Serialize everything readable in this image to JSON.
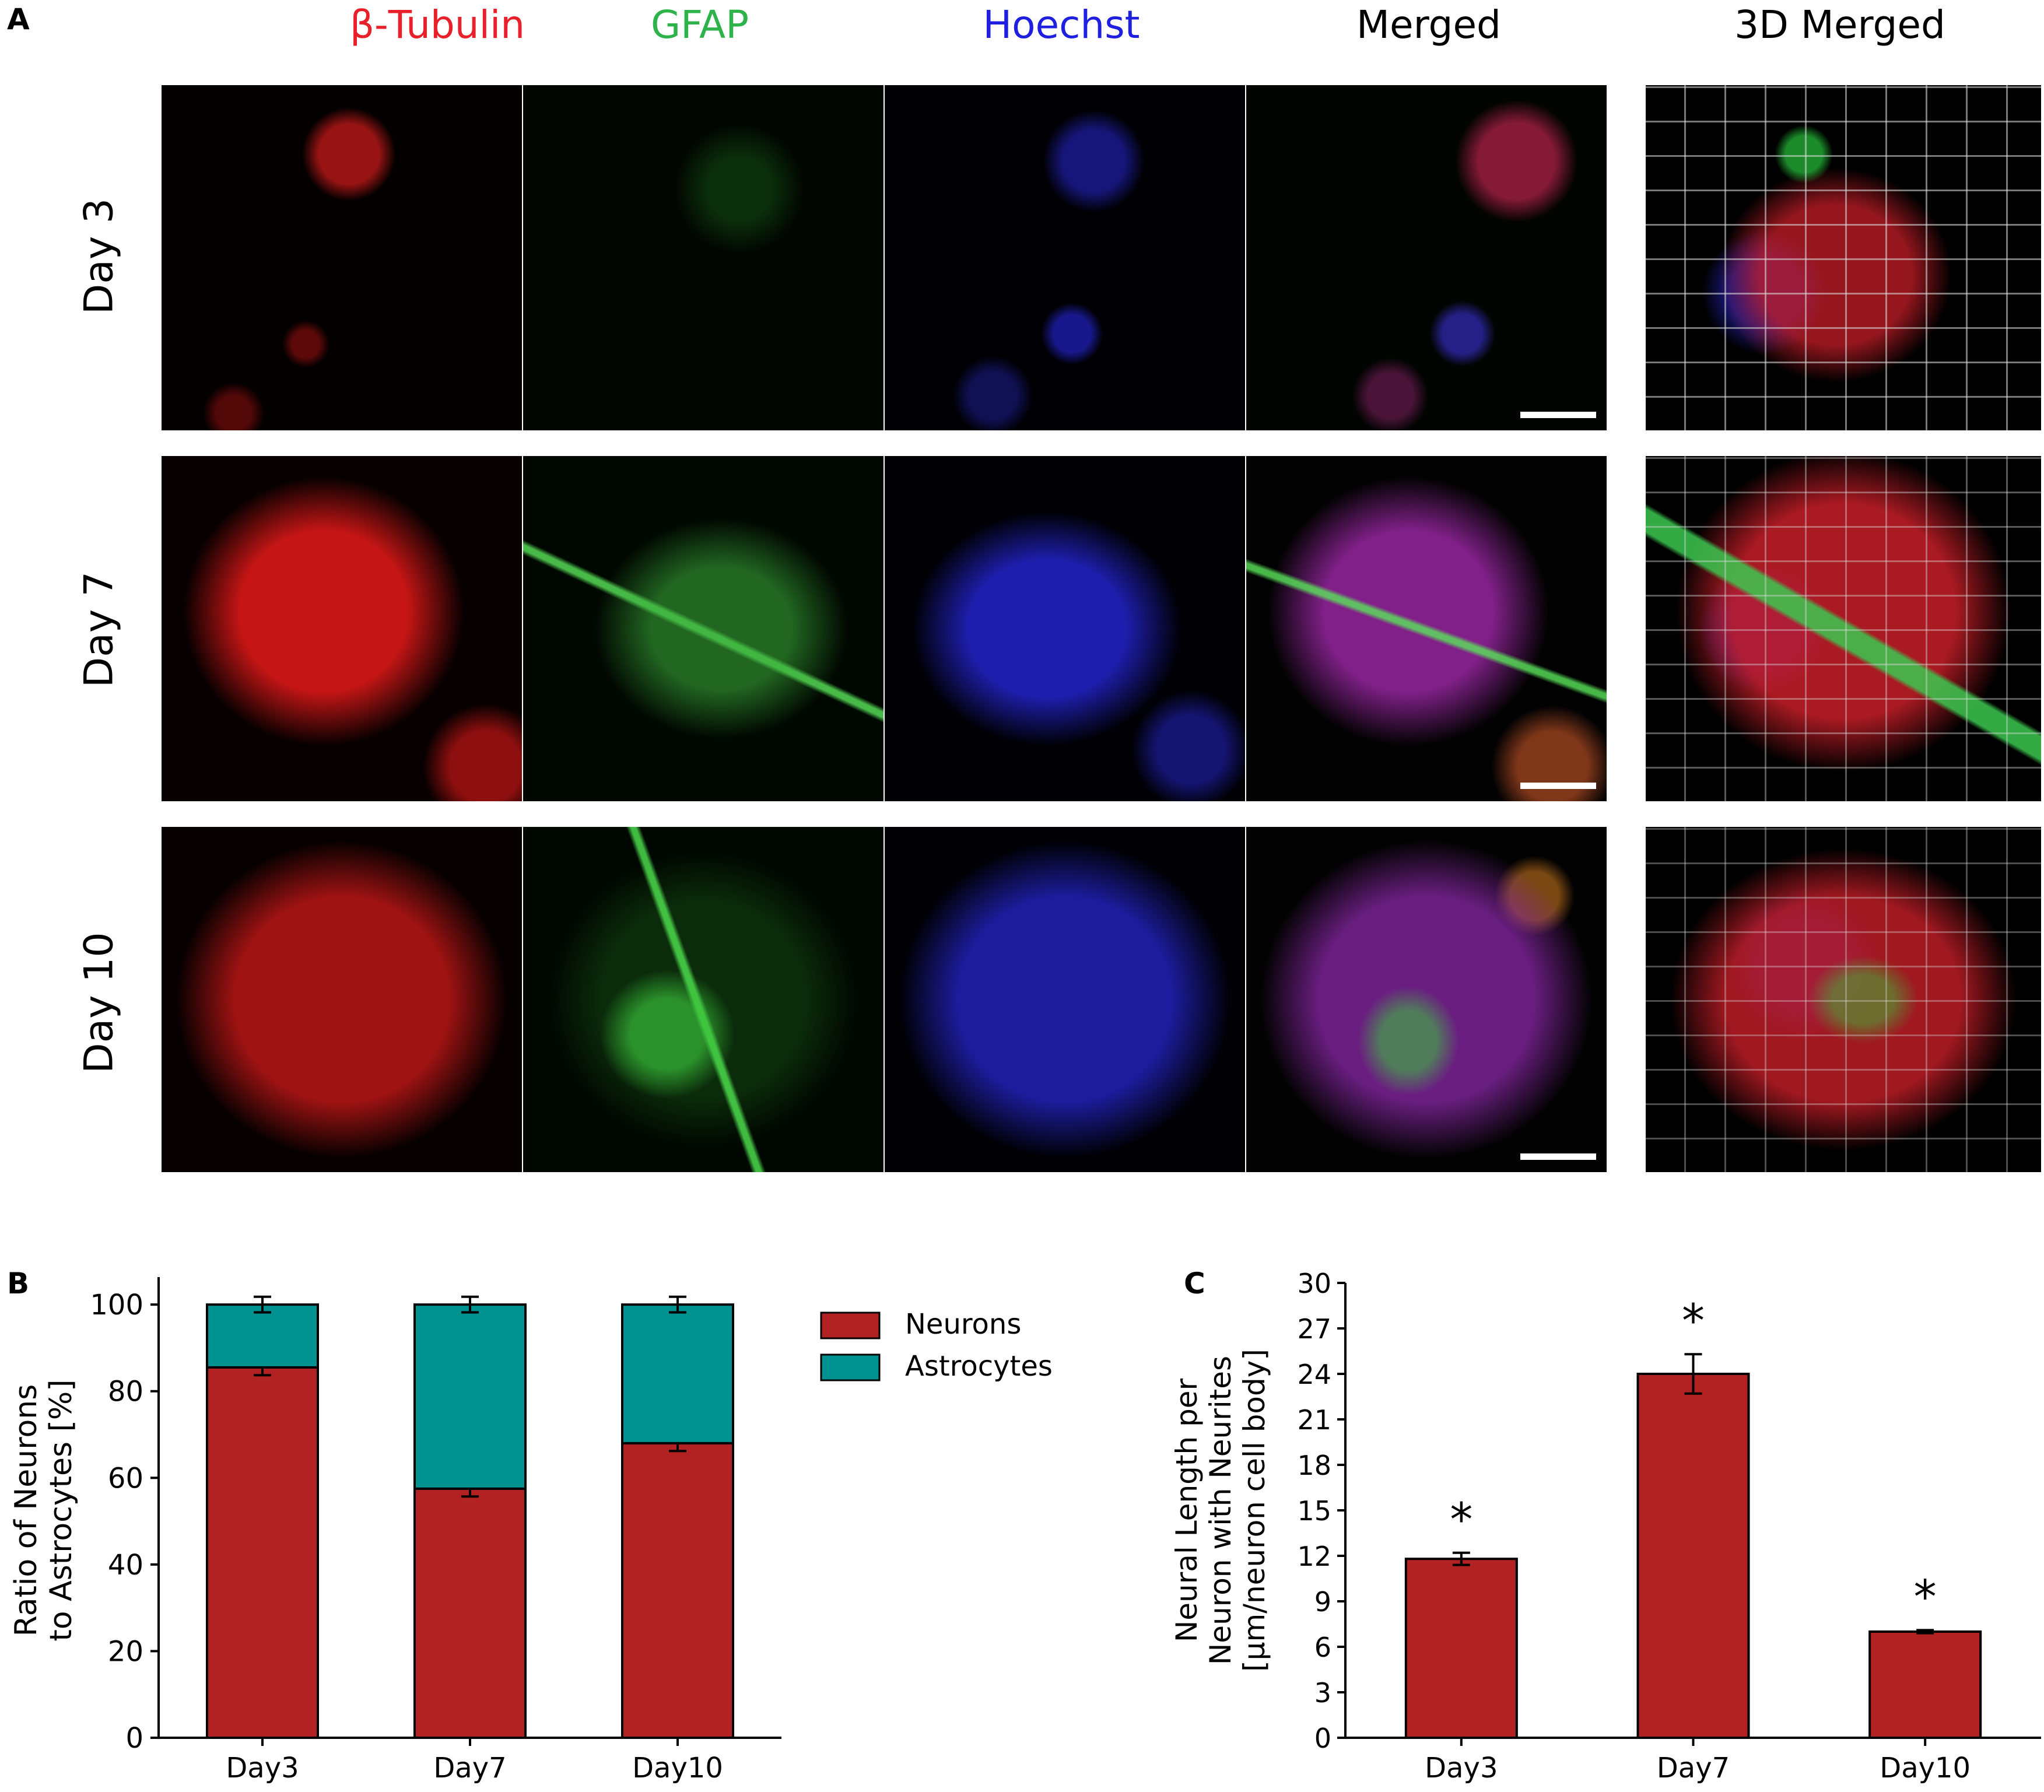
{
  "panel_a": {
    "label": "A",
    "columns": [
      {
        "label": "β-Tubulin",
        "color": "#e8202a"
      },
      {
        "label": "GFAP",
        "color": "#2db34a"
      },
      {
        "label": "Hoechst",
        "color": "#1f1fe0"
      },
      {
        "label": "Merged",
        "color": "#000000"
      },
      {
        "label": "3D Merged",
        "color": "#000000"
      }
    ],
    "rows": [
      {
        "label": "Day 3"
      },
      {
        "label": "Day 7"
      },
      {
        "label": "Day 10"
      }
    ]
  },
  "panel_b": {
    "label": "B"
  },
  "panel_c": {
    "label": "C"
  },
  "chart_data": [
    {
      "type": "bar",
      "stacked": true,
      "categories": [
        "Day3",
        "Day7",
        "Day10"
      ],
      "series": [
        {
          "name": "Neurons",
          "color": "#b22222",
          "values": [
            85.5,
            57.5,
            68.0
          ],
          "errors": [
            1.8,
            1.8,
            1.8
          ]
        },
        {
          "name": "Astrocytes",
          "color": "#009191",
          "values": [
            14.5,
            42.5,
            32.0
          ],
          "errors": [
            1.8,
            1.8,
            1.8
          ]
        }
      ],
      "ylabel_lines": [
        "Ratio of Neurons",
        "to Astrocytes [%]"
      ],
      "ylim": [
        0,
        105
      ],
      "yticks": [
        0,
        20,
        40,
        60,
        80,
        100
      ],
      "legend": "top-right"
    },
    {
      "type": "bar",
      "categories": [
        "Day3",
        "Day7",
        "Day10"
      ],
      "series": [
        {
          "color": "#b22222",
          "values": [
            11.8,
            24.0,
            7.0
          ],
          "errors": [
            0.4,
            1.3,
            0.1
          ]
        }
      ],
      "annotations": [
        "*",
        "*",
        "*"
      ],
      "ylabel_lines": [
        "Neural Length per",
        "Neuron with Neurites",
        "[μm/neuron cell body]"
      ],
      "ylim": [
        0,
        30
      ],
      "yticks": [
        0,
        3,
        6,
        9,
        12,
        15,
        18,
        21,
        24,
        27,
        30
      ]
    }
  ]
}
